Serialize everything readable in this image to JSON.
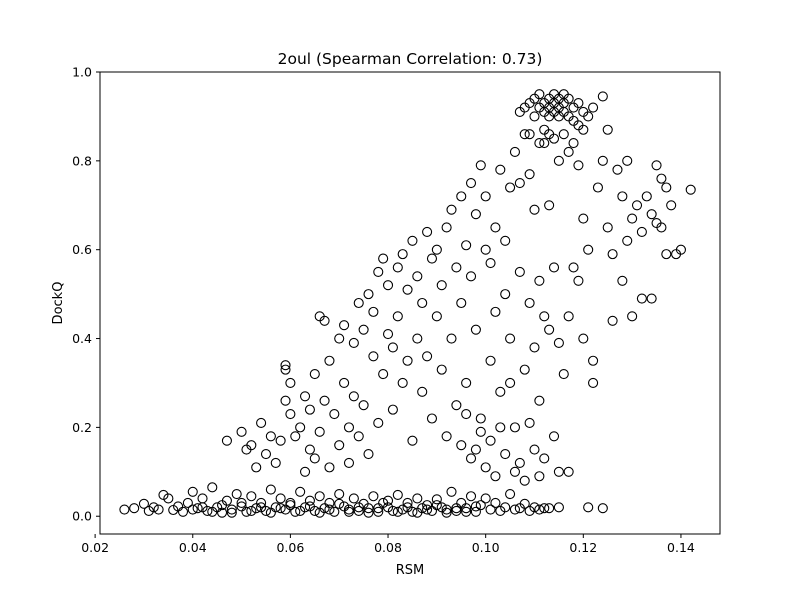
{
  "chart_data": {
    "type": "scatter",
    "title": "2oul (Spearman Correlation: 0.73)",
    "xlabel": "RSM",
    "ylabel": "DockQ",
    "xlim": [
      0.021,
      0.148
    ],
    "ylim": [
      -0.04,
      1.0
    ],
    "grid": false,
    "legend": "none",
    "marker": "open-circle",
    "marker_color": "#000000",
    "xticks": [
      0.02,
      0.04,
      0.06,
      0.08,
      0.1,
      0.12,
      0.14
    ],
    "xtick_labels": [
      "0.02",
      "0.04",
      "0.06",
      "0.08",
      "0.10",
      "0.12",
      "0.14"
    ],
    "yticks": [
      0.0,
      0.2,
      0.4,
      0.6,
      0.8,
      1.0
    ],
    "ytick_labels": [
      "0.0",
      "0.2",
      "0.4",
      "0.6",
      "0.8",
      "1.0"
    ],
    "points": [
      [
        0.026,
        0.015
      ],
      [
        0.028,
        0.018
      ],
      [
        0.03,
        0.028
      ],
      [
        0.031,
        0.012
      ],
      [
        0.032,
        0.02
      ],
      [
        0.033,
        0.015
      ],
      [
        0.034,
        0.048
      ],
      [
        0.035,
        0.04
      ],
      [
        0.036,
        0.014
      ],
      [
        0.037,
        0.022
      ],
      [
        0.038,
        0.01
      ],
      [
        0.039,
        0.03
      ],
      [
        0.04,
        0.055
      ],
      [
        0.041,
        0.018
      ],
      [
        0.042,
        0.04
      ],
      [
        0.043,
        0.012
      ],
      [
        0.044,
        0.065
      ],
      [
        0.045,
        0.02
      ],
      [
        0.046,
        0.008
      ],
      [
        0.047,
        0.035
      ],
      [
        0.048,
        0.015
      ],
      [
        0.049,
        0.05
      ],
      [
        0.05,
        0.022
      ],
      [
        0.051,
        0.01
      ],
      [
        0.052,
        0.045
      ],
      [
        0.053,
        0.018
      ],
      [
        0.054,
        0.03
      ],
      [
        0.055,
        0.012
      ],
      [
        0.056,
        0.06
      ],
      [
        0.057,
        0.02
      ],
      [
        0.058,
        0.04
      ],
      [
        0.059,
        0.015
      ],
      [
        0.06,
        0.025
      ],
      [
        0.061,
        0.01
      ],
      [
        0.062,
        0.055
      ],
      [
        0.063,
        0.02
      ],
      [
        0.064,
        0.035
      ],
      [
        0.065,
        0.012
      ],
      [
        0.066,
        0.045
      ],
      [
        0.067,
        0.018
      ],
      [
        0.068,
        0.03
      ],
      [
        0.069,
        0.01
      ],
      [
        0.07,
        0.05
      ],
      [
        0.071,
        0.022
      ],
      [
        0.072,
        0.015
      ],
      [
        0.073,
        0.04
      ],
      [
        0.074,
        0.012
      ],
      [
        0.075,
        0.028
      ],
      [
        0.076,
        0.018
      ],
      [
        0.077,
        0.045
      ],
      [
        0.078,
        0.01
      ],
      [
        0.079,
        0.03
      ],
      [
        0.08,
        0.02
      ],
      [
        0.081,
        0.012
      ],
      [
        0.082,
        0.048
      ],
      [
        0.083,
        0.015
      ],
      [
        0.084,
        0.03
      ],
      [
        0.085,
        0.01
      ],
      [
        0.086,
        0.04
      ],
      [
        0.087,
        0.018
      ],
      [
        0.088,
        0.025
      ],
      [
        0.089,
        0.012
      ],
      [
        0.09,
        0.038
      ],
      [
        0.091,
        0.02
      ],
      [
        0.092,
        0.015
      ],
      [
        0.093,
        0.055
      ],
      [
        0.094,
        0.012
      ],
      [
        0.095,
        0.03
      ],
      [
        0.096,
        0.018
      ],
      [
        0.097,
        0.045
      ],
      [
        0.098,
        0.01
      ],
      [
        0.099,
        0.025
      ],
      [
        0.1,
        0.04
      ],
      [
        0.101,
        0.015
      ],
      [
        0.102,
        0.03
      ],
      [
        0.103,
        0.012
      ],
      [
        0.104,
        0.02
      ],
      [
        0.105,
        0.05
      ],
      [
        0.106,
        0.015
      ],
      [
        0.107,
        0.018
      ],
      [
        0.108,
        0.028
      ],
      [
        0.109,
        0.012
      ],
      [
        0.11,
        0.02
      ],
      [
        0.111,
        0.015
      ],
      [
        0.113,
        0.018
      ],
      [
        0.115,
        0.02
      ],
      [
        0.117,
        0.1
      ],
      [
        0.121,
        0.02
      ],
      [
        0.124,
        0.018
      ],
      [
        0.112,
        0.018
      ],
      [
        0.04,
        0.015
      ],
      [
        0.042,
        0.02
      ],
      [
        0.044,
        0.01
      ],
      [
        0.046,
        0.025
      ],
      [
        0.048,
        0.008
      ],
      [
        0.05,
        0.03
      ],
      [
        0.052,
        0.012
      ],
      [
        0.054,
        0.02
      ],
      [
        0.056,
        0.008
      ],
      [
        0.058,
        0.018
      ],
      [
        0.06,
        0.03
      ],
      [
        0.062,
        0.012
      ],
      [
        0.064,
        0.022
      ],
      [
        0.066,
        0.008
      ],
      [
        0.068,
        0.015
      ],
      [
        0.07,
        0.028
      ],
      [
        0.072,
        0.01
      ],
      [
        0.074,
        0.02
      ],
      [
        0.076,
        0.008
      ],
      [
        0.078,
        0.018
      ],
      [
        0.08,
        0.035
      ],
      [
        0.082,
        0.01
      ],
      [
        0.084,
        0.02
      ],
      [
        0.086,
        0.008
      ],
      [
        0.088,
        0.015
      ],
      [
        0.09,
        0.025
      ],
      [
        0.092,
        0.008
      ],
      [
        0.094,
        0.018
      ],
      [
        0.096,
        0.01
      ],
      [
        0.098,
        0.022
      ],
      [
        0.047,
        0.17
      ],
      [
        0.05,
        0.19
      ],
      [
        0.051,
        0.15
      ],
      [
        0.052,
        0.16
      ],
      [
        0.053,
        0.11
      ],
      [
        0.054,
        0.21
      ],
      [
        0.055,
        0.14
      ],
      [
        0.056,
        0.18
      ],
      [
        0.057,
        0.12
      ],
      [
        0.058,
        0.17
      ],
      [
        0.059,
        0.26
      ],
      [
        0.059,
        0.34
      ],
      [
        0.059,
        0.33
      ],
      [
        0.06,
        0.3
      ],
      [
        0.06,
        0.23
      ],
      [
        0.061,
        0.18
      ],
      [
        0.062,
        0.2
      ],
      [
        0.063,
        0.1
      ],
      [
        0.063,
        0.27
      ],
      [
        0.064,
        0.15
      ],
      [
        0.064,
        0.24
      ],
      [
        0.065,
        0.13
      ],
      [
        0.065,
        0.32
      ],
      [
        0.066,
        0.45
      ],
      [
        0.066,
        0.19
      ],
      [
        0.067,
        0.26
      ],
      [
        0.067,
        0.44
      ],
      [
        0.068,
        0.35
      ],
      [
        0.068,
        0.11
      ],
      [
        0.069,
        0.23
      ],
      [
        0.07,
        0.4
      ],
      [
        0.07,
        0.16
      ],
      [
        0.071,
        0.3
      ],
      [
        0.071,
        0.43
      ],
      [
        0.072,
        0.2
      ],
      [
        0.072,
        0.12
      ],
      [
        0.073,
        0.39
      ],
      [
        0.073,
        0.27
      ],
      [
        0.074,
        0.48
      ],
      [
        0.074,
        0.18
      ],
      [
        0.075,
        0.42
      ],
      [
        0.075,
        0.25
      ],
      [
        0.076,
        0.5
      ],
      [
        0.076,
        0.14
      ],
      [
        0.077,
        0.36
      ],
      [
        0.077,
        0.46
      ],
      [
        0.078,
        0.21
      ],
      [
        0.078,
        0.55
      ],
      [
        0.079,
        0.58
      ],
      [
        0.079,
        0.32
      ],
      [
        0.08,
        0.52
      ],
      [
        0.08,
        0.41
      ],
      [
        0.081,
        0.38
      ],
      [
        0.081,
        0.24
      ],
      [
        0.082,
        0.56
      ],
      [
        0.082,
        0.45
      ],
      [
        0.083,
        0.59
      ],
      [
        0.083,
        0.3
      ],
      [
        0.084,
        0.35
      ],
      [
        0.084,
        0.51
      ],
      [
        0.085,
        0.62
      ],
      [
        0.085,
        0.17
      ],
      [
        0.086,
        0.4
      ],
      [
        0.086,
        0.54
      ],
      [
        0.087,
        0.28
      ],
      [
        0.087,
        0.48
      ],
      [
        0.088,
        0.64
      ],
      [
        0.088,
        0.36
      ],
      [
        0.089,
        0.22
      ],
      [
        0.089,
        0.58
      ],
      [
        0.09,
        0.6
      ],
      [
        0.09,
        0.45
      ],
      [
        0.091,
        0.33
      ],
      [
        0.091,
        0.52
      ],
      [
        0.092,
        0.65
      ],
      [
        0.092,
        0.18
      ],
      [
        0.093,
        0.69
      ],
      [
        0.093,
        0.4
      ],
      [
        0.094,
        0.56
      ],
      [
        0.094,
        0.25
      ],
      [
        0.095,
        0.72
      ],
      [
        0.095,
        0.48
      ],
      [
        0.096,
        0.61
      ],
      [
        0.096,
        0.3
      ],
      [
        0.097,
        0.75
      ],
      [
        0.097,
        0.54
      ],
      [
        0.098,
        0.68
      ],
      [
        0.098,
        0.42
      ],
      [
        0.099,
        0.79
      ],
      [
        0.099,
        0.22
      ],
      [
        0.1,
        0.72
      ],
      [
        0.1,
        0.6
      ],
      [
        0.101,
        0.57
      ],
      [
        0.101,
        0.35
      ],
      [
        0.102,
        0.65
      ],
      [
        0.102,
        0.46
      ],
      [
        0.103,
        0.78
      ],
      [
        0.103,
        0.28
      ],
      [
        0.104,
        0.5
      ],
      [
        0.104,
        0.62
      ],
      [
        0.105,
        0.74
      ],
      [
        0.105,
        0.4
      ],
      [
        0.106,
        0.82
      ],
      [
        0.106,
        0.2
      ],
      [
        0.107,
        0.75
      ],
      [
        0.107,
        0.55
      ],
      [
        0.108,
        0.86
      ],
      [
        0.108,
        0.33
      ],
      [
        0.109,
        0.77
      ],
      [
        0.109,
        0.48
      ],
      [
        0.11,
        0.69
      ],
      [
        0.11,
        0.38
      ],
      [
        0.111,
        0.53
      ],
      [
        0.111,
        0.26
      ],
      [
        0.112,
        0.84
      ],
      [
        0.112,
        0.45
      ],
      [
        0.113,
        0.7
      ],
      [
        0.113,
        0.42
      ],
      [
        0.114,
        0.56
      ],
      [
        0.115,
        0.8
      ],
      [
        0.115,
        0.39
      ],
      [
        0.116,
        0.32
      ],
      [
        0.117,
        0.45
      ],
      [
        0.118,
        0.56
      ],
      [
        0.119,
        0.79
      ],
      [
        0.119,
        0.53
      ],
      [
        0.12,
        0.67
      ],
      [
        0.12,
        0.4
      ],
      [
        0.121,
        0.6
      ],
      [
        0.122,
        0.35
      ],
      [
        0.122,
        0.3
      ],
      [
        0.123,
        0.74
      ],
      [
        0.124,
        0.8
      ],
      [
        0.125,
        0.65
      ],
      [
        0.125,
        0.87
      ],
      [
        0.126,
        0.44
      ],
      [
        0.126,
        0.59
      ],
      [
        0.127,
        0.78
      ],
      [
        0.128,
        0.72
      ],
      [
        0.128,
        0.53
      ],
      [
        0.129,
        0.62
      ],
      [
        0.129,
        0.8
      ],
      [
        0.13,
        0.45
      ],
      [
        0.13,
        0.67
      ],
      [
        0.131,
        0.7
      ],
      [
        0.132,
        0.64
      ],
      [
        0.132,
        0.49
      ],
      [
        0.133,
        0.72
      ],
      [
        0.134,
        0.68
      ],
      [
        0.134,
        0.49
      ],
      [
        0.135,
        0.79
      ],
      [
        0.135,
        0.66
      ],
      [
        0.136,
        0.76
      ],
      [
        0.137,
        0.74
      ],
      [
        0.137,
        0.59
      ],
      [
        0.138,
        0.7
      ],
      [
        0.139,
        0.59
      ],
      [
        0.14,
        0.6
      ],
      [
        0.142,
        0.735
      ],
      [
        0.136,
        0.65
      ],
      [
        0.107,
        0.91
      ],
      [
        0.108,
        0.92
      ],
      [
        0.109,
        0.93
      ],
      [
        0.11,
        0.9
      ],
      [
        0.11,
        0.94
      ],
      [
        0.111,
        0.92
      ],
      [
        0.111,
        0.95
      ],
      [
        0.112,
        0.91
      ],
      [
        0.112,
        0.93
      ],
      [
        0.113,
        0.9
      ],
      [
        0.113,
        0.94
      ],
      [
        0.113,
        0.92
      ],
      [
        0.114,
        0.95
      ],
      [
        0.114,
        0.91
      ],
      [
        0.114,
        0.93
      ],
      [
        0.115,
        0.9
      ],
      [
        0.115,
        0.94
      ],
      [
        0.115,
        0.92
      ],
      [
        0.116,
        0.95
      ],
      [
        0.116,
        0.91
      ],
      [
        0.116,
        0.93
      ],
      [
        0.117,
        0.9
      ],
      [
        0.117,
        0.94
      ],
      [
        0.118,
        0.92
      ],
      [
        0.118,
        0.89
      ],
      [
        0.119,
        0.93
      ],
      [
        0.119,
        0.88
      ],
      [
        0.12,
        0.91
      ],
      [
        0.12,
        0.87
      ],
      [
        0.121,
        0.9
      ],
      [
        0.122,
        0.92
      ],
      [
        0.124,
        0.945
      ],
      [
        0.112,
        0.87
      ],
      [
        0.113,
        0.86
      ],
      [
        0.114,
        0.85
      ],
      [
        0.111,
        0.84
      ],
      [
        0.116,
        0.86
      ],
      [
        0.118,
        0.84
      ],
      [
        0.109,
        0.86
      ],
      [
        0.117,
        0.82
      ],
      [
        0.106,
        0.1
      ],
      [
        0.107,
        0.12
      ],
      [
        0.108,
        0.08
      ],
      [
        0.109,
        0.21
      ],
      [
        0.11,
        0.15
      ],
      [
        0.111,
        0.09
      ],
      [
        0.112,
        0.13
      ],
      [
        0.114,
        0.18
      ],
      [
        0.115,
        0.1
      ],
      [
        0.102,
        0.09
      ],
      [
        0.103,
        0.2
      ],
      [
        0.104,
        0.14
      ],
      [
        0.105,
        0.3
      ],
      [
        0.101,
        0.17
      ],
      [
        0.1,
        0.11
      ],
      [
        0.099,
        0.19
      ],
      [
        0.098,
        0.15
      ],
      [
        0.097,
        0.13
      ],
      [
        0.096,
        0.23
      ],
      [
        0.095,
        0.16
      ]
    ]
  }
}
